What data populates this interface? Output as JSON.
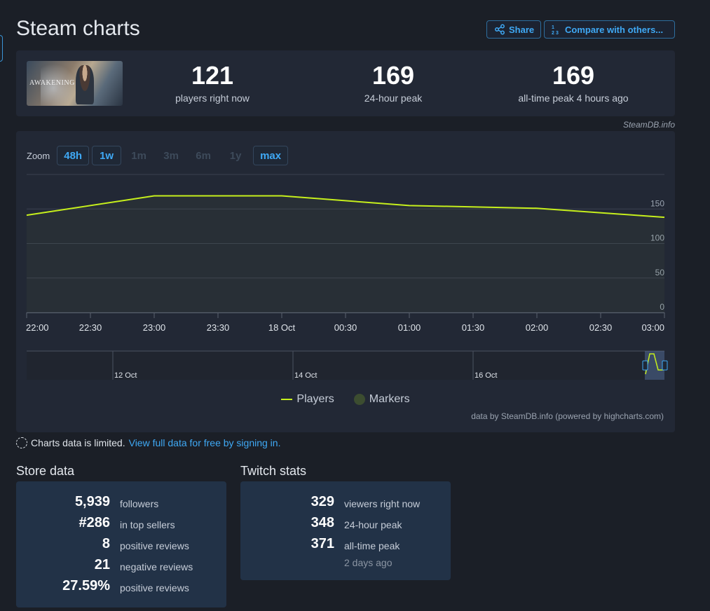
{
  "page": {
    "title": "Steam charts"
  },
  "header": {
    "share_label": "Share",
    "compare_label": "Compare with others...",
    "share_icon": "share-icon",
    "compare_icon": "numbers-icon"
  },
  "game": {
    "image_alt": "AWAKENING",
    "logo_text": "AWAKENING"
  },
  "summary": [
    {
      "value": "121",
      "label": "players right now"
    },
    {
      "value": "169",
      "label": "24-hour peak"
    },
    {
      "value": "169",
      "label": "all-time peak 4 hours ago"
    }
  ],
  "attribution": "SteamDB.info",
  "zoom": {
    "label": "Zoom",
    "options": [
      {
        "label": "48h",
        "enabled": true
      },
      {
        "label": "1w",
        "enabled": true
      },
      {
        "label": "1m",
        "enabled": false
      },
      {
        "label": "3m",
        "enabled": false
      },
      {
        "label": "6m",
        "enabled": false
      },
      {
        "label": "1y",
        "enabled": false
      },
      {
        "label": "max",
        "enabled": true
      }
    ]
  },
  "chart_data": {
    "type": "line",
    "x": [
      "22:00",
      "23:00",
      "00:00",
      "01:00",
      "02:00",
      "03:00"
    ],
    "x_tick_labels": [
      "22:00",
      "22:30",
      "23:00",
      "23:30",
      "18 Oct",
      "00:30",
      "01:00",
      "01:30",
      "02:00",
      "02:30",
      "03:00"
    ],
    "series": [
      {
        "name": "Players",
        "values": [
          141,
          169,
          169,
          155,
          151,
          138
        ],
        "color": "#c6ef1c"
      }
    ],
    "y_ticks": [
      0,
      50,
      100,
      150
    ],
    "ylim": [
      0,
      200
    ],
    "navigator_labels": [
      "12 Oct",
      "14 Oct",
      "16 Oct"
    ],
    "grid": true,
    "legend": "bottom-center",
    "legend_items": [
      "Players",
      "Markers"
    ],
    "credits": "data by SteamDB.info (powered by highcharts.com)"
  },
  "notice": {
    "text": "Charts data is limited.",
    "link": "View full data for free by signing in."
  },
  "store": {
    "title": "Store data",
    "rows": [
      {
        "value": "5,939",
        "label": "followers"
      },
      {
        "value": "#286",
        "label": "in top sellers"
      },
      {
        "value": "8",
        "label": "positive reviews"
      },
      {
        "value": "21",
        "label": "negative reviews"
      },
      {
        "value": "27.59%",
        "label": "positive reviews"
      }
    ]
  },
  "twitch": {
    "title": "Twitch stats",
    "rows": [
      {
        "value": "329",
        "label": "viewers right now"
      },
      {
        "value": "348",
        "label": "24-hour peak"
      },
      {
        "value": "371",
        "label": "all-time peak"
      }
    ],
    "subnote": "2 days ago"
  }
}
